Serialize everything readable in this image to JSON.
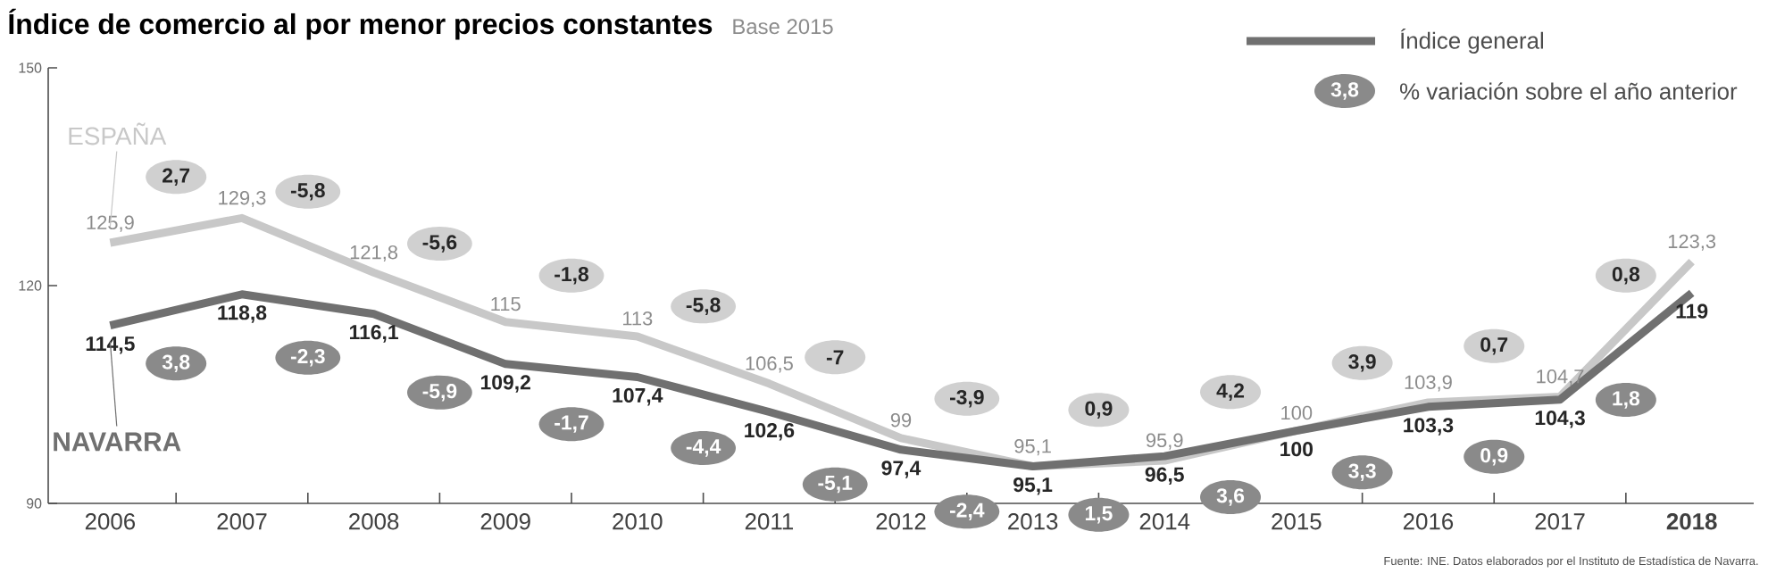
{
  "chart_data": {
    "type": "line",
    "title": "Índice de comercio al por menor precios constantes",
    "subtitle": "Base 2015",
    "categories": [
      "2006",
      "2007",
      "2008",
      "2009",
      "2010",
      "2011",
      "2012",
      "2013",
      "2014",
      "2015",
      "2016",
      "2017",
      "2018"
    ],
    "ylim": [
      90,
      150
    ],
    "yticks": [
      90,
      120,
      150
    ],
    "grid": false,
    "series": [
      {
        "name": "ESPAÑA",
        "color": "#c8c8c8",
        "values": [
          125.9,
          129.3,
          121.8,
          115,
          113,
          106.5,
          99,
          95.1,
          95.9,
          100,
          103.9,
          104.7,
          123.3
        ],
        "value_labels": [
          "125,9",
          "129,3",
          "121,8",
          "115",
          "113",
          "106,5",
          "99",
          "95,1",
          "95,9",
          "100",
          "103,9",
          "104,7",
          "123,3"
        ]
      },
      {
        "name": "NAVARRA",
        "color": "#707070",
        "values": [
          114.5,
          118.8,
          116.1,
          109.2,
          107.4,
          102.6,
          97.4,
          95.1,
          96.5,
          100,
          103.3,
          104.3,
          119
        ],
        "value_labels": [
          "114,5",
          "118,8",
          "116,1",
          "109,2",
          "107,4",
          "102,6",
          "97,4",
          "95,1",
          "96,5",
          "100",
          "103,3",
          "104,3",
          "119"
        ]
      }
    ],
    "annotations": [
      "Índice general",
      "3,8",
      "% variación sobre el año anterior",
      "Fuente: INE. Datos elaborados por el Instituto de Estadística de Navarra.",
      "2,7",
      "-5,8",
      "-5,6",
      "-1,8",
      "-5,8",
      "-7",
      "-3,9",
      "0,9",
      "4,2",
      "3,9",
      "0,7",
      "0,8",
      "3,8",
      "-2,3",
      "-5,9",
      "-1,7",
      "-4,4",
      "-5,1",
      "-2,4",
      "1,5",
      "3,6",
      "3,3",
      "0,9",
      "1,8"
    ]
  }
}
